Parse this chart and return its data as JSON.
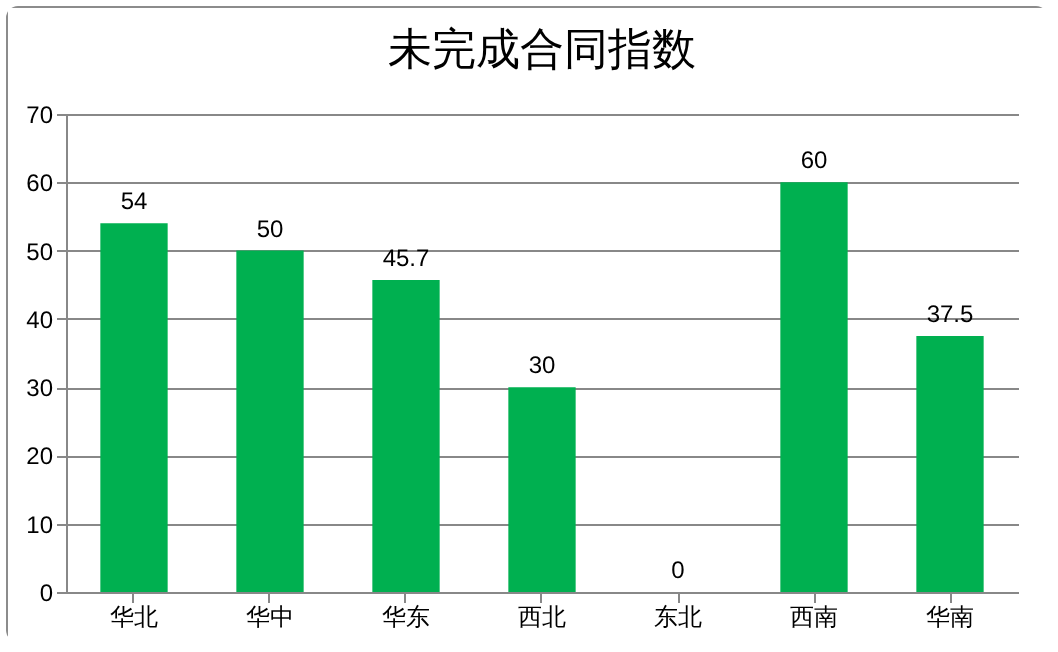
{
  "chart_data": {
    "type": "bar",
    "title": "未完成合同指数",
    "categories": [
      "华北",
      "华中",
      "华东",
      "西北",
      "东北",
      "西南",
      "华南"
    ],
    "values": [
      54,
      50,
      45.7,
      30,
      0,
      60,
      37.5
    ],
    "color": "#00b050",
    "ylim": [
      0,
      70
    ],
    "yticks": [
      0,
      10,
      20,
      30,
      40,
      50,
      60,
      70
    ],
    "grid": "y",
    "data_labels": true
  }
}
